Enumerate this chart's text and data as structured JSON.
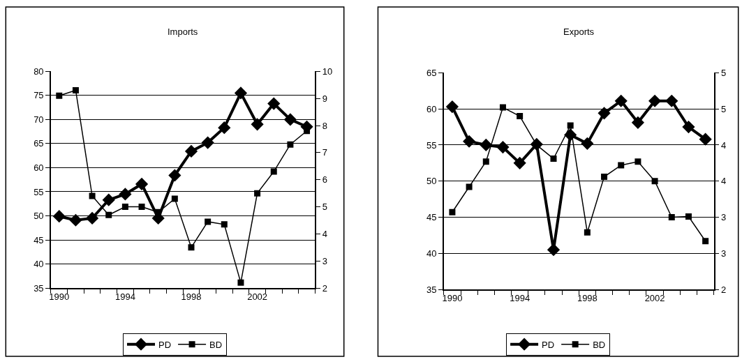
{
  "chart_data": [
    {
      "type": "line",
      "title": "Imports",
      "categories": [
        "1990",
        null,
        null,
        null,
        "1994",
        null,
        null,
        null,
        "1998",
        null,
        null,
        null,
        "2002",
        null,
        null,
        null
      ],
      "series": [
        {
          "name": "PD",
          "color": "#000000",
          "marker": "diamond",
          "values": [
            49.9,
            49.1,
            49.5,
            53.3,
            54.5,
            56.6,
            49.5,
            58.4,
            63.4,
            65.2,
            68.3,
            75.5,
            69.0,
            73.3,
            70.0,
            68.5
          ]
        },
        {
          "name": "BD",
          "color": "#000000",
          "marker": "square",
          "axis": "y2",
          "values": [
            9.1,
            9.3,
            5.4,
            4.7,
            5.0,
            5.0,
            4.8,
            5.3,
            3.5,
            4.45,
            4.35,
            2.2,
            5.5,
            6.3,
            7.3,
            7.8
          ]
        }
      ],
      "ylim": [
        35,
        80
      ],
      "yticks": [
        35,
        40,
        45,
        50,
        55,
        60,
        65,
        70,
        75,
        80
      ],
      "y2lim": [
        2,
        10
      ],
      "y2ticks": [
        2,
        3,
        4,
        5,
        6,
        7,
        8,
        9,
        10
      ],
      "grid": "y",
      "legend": "bottom"
    },
    {
      "type": "line",
      "title": "Exports",
      "categories": [
        "1990",
        null,
        null,
        null,
        "1994",
        null,
        null,
        null,
        "1998",
        null,
        null,
        null,
        "2002",
        null,
        null,
        null
      ],
      "series": [
        {
          "name": "PD",
          "color": "#000000",
          "marker": "diamond",
          "values": [
            60.3,
            55.5,
            55.0,
            54.7,
            52.5,
            55.1,
            40.5,
            56.4,
            55.2,
            59.4,
            61.1,
            58.1,
            61.1,
            61.1,
            57.5,
            55.8
          ]
        },
        {
          "name": "BD",
          "color": "#000000",
          "marker": "square",
          "axis": "y2",
          "values": [
            3.07,
            3.42,
            3.77,
            4.52,
            4.4,
            4.0,
            3.81,
            4.27,
            2.79,
            3.56,
            3.72,
            3.77,
            3.5,
            3.0,
            3.01,
            2.67
          ]
        }
      ],
      "ylim": [
        35,
        65
      ],
      "yticks": [
        35,
        40,
        45,
        50,
        55,
        60,
        65
      ],
      "y2lim": [
        2,
        5
      ],
      "y2ticks": [
        2,
        {
          "value": 2.5,
          "label": "3"
        },
        3,
        {
          "value": 3.5,
          "label": "4"
        },
        4,
        {
          "value": 4.5,
          "label": "5"
        },
        5
      ],
      "grid": "y",
      "legend": "bottom"
    }
  ]
}
